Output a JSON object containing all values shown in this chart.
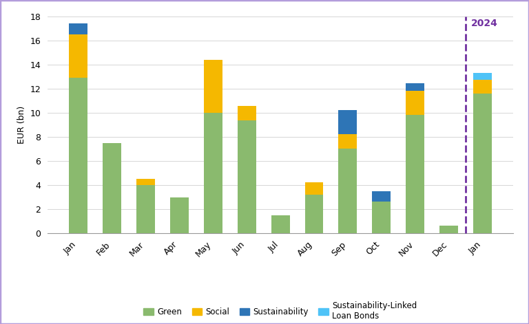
{
  "months": [
    "Jan",
    "Feb",
    "Mar",
    "Apr",
    "May",
    "Jun",
    "Jul",
    "Aug",
    "Sep",
    "Oct",
    "Nov",
    "Dec",
    "Jan"
  ],
  "green": [
    12.9,
    7.5,
    4.0,
    3.0,
    10.0,
    9.35,
    1.5,
    3.2,
    7.0,
    2.65,
    9.8,
    0.65,
    11.6
  ],
  "social": [
    3.6,
    0.0,
    0.5,
    0.0,
    4.4,
    1.2,
    0.0,
    1.0,
    1.2,
    0.0,
    2.0,
    0.0,
    1.15
  ],
  "sustainability": [
    0.9,
    0.0,
    0.0,
    0.0,
    0.0,
    0.0,
    0.0,
    0.0,
    2.0,
    0.85,
    0.65,
    0.0,
    0.0
  ],
  "slbonds": [
    0.0,
    0.0,
    0.0,
    0.0,
    0.0,
    0.0,
    0.0,
    0.0,
    0.0,
    0.0,
    0.0,
    0.0,
    0.55
  ],
  "colors": {
    "green": "#8aba6e",
    "social": "#f5b800",
    "sustainability": "#2e75b6",
    "slbonds": "#4fc3f7"
  },
  "ylabel": "EUR (bn)",
  "ylim": [
    0,
    18
  ],
  "yticks": [
    0,
    2,
    4,
    6,
    8,
    10,
    12,
    14,
    16,
    18
  ],
  "divider_index": 12,
  "divider_label": "2024",
  "divider_color": "#7030a0",
  "legend_labels": [
    "Green",
    "Social",
    "Sustainability",
    "Sustainability-Linked\nLoan Bonds"
  ],
  "border_color": "#b39ddb",
  "background_color": "#ffffff"
}
